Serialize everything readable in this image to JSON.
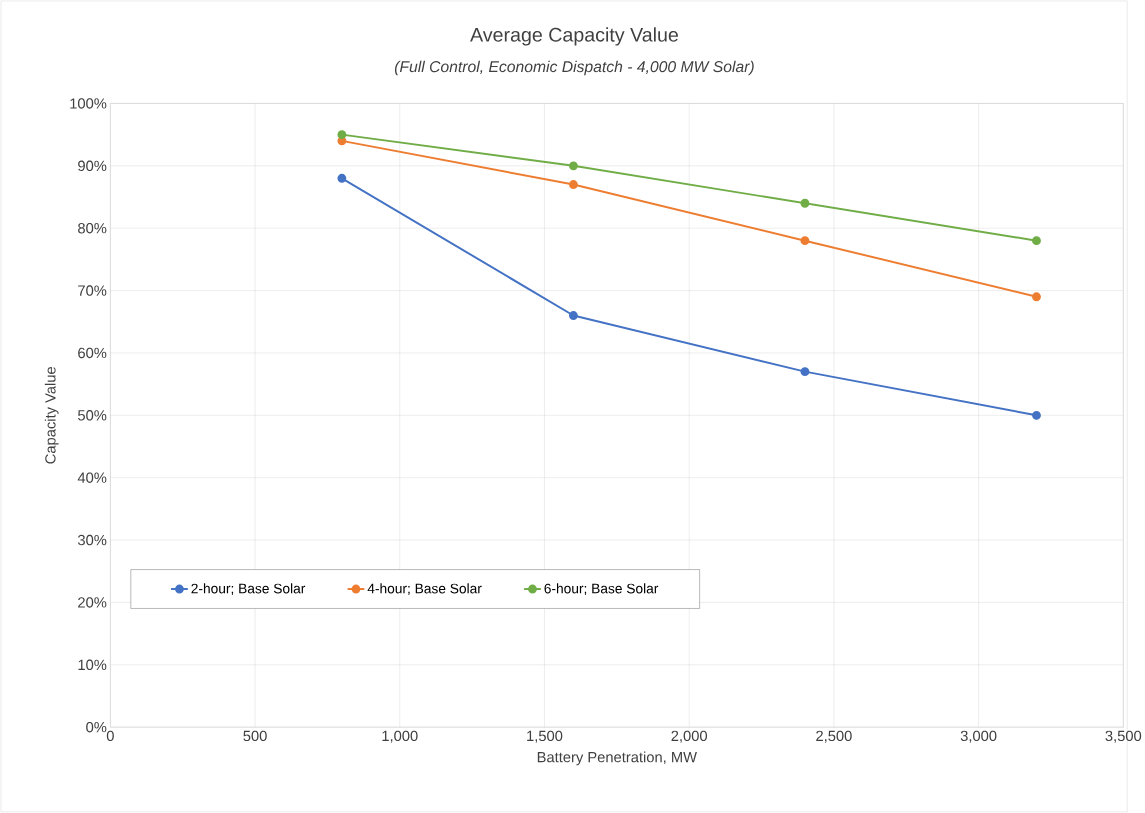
{
  "chart_data": {
    "type": "line",
    "title": "Average Capacity Value",
    "subtitle": "(Full Control, Economic Dispatch - 4,000 MW Solar)",
    "xlabel": "Battery Penetration, MW",
    "ylabel": "Capacity Value",
    "x": [
      800,
      1600,
      2400,
      3200
    ],
    "series": [
      {
        "name": "2-hour; Base Solar",
        "color": "#4472c4",
        "values": [
          88,
          66,
          57,
          50
        ]
      },
      {
        "name": "4-hour; Base Solar",
        "color": "#ed7d31",
        "values": [
          94,
          87,
          78,
          69
        ]
      },
      {
        "name": "6-hour; Base Solar",
        "color": "#70ad47",
        "values": [
          95,
          90,
          84,
          78
        ]
      }
    ],
    "xlim": [
      0,
      3500
    ],
    "xticks": [
      0,
      500,
      {
        "value": 1000,
        "label": "1,000"
      },
      {
        "value": 1500,
        "label": "1,500"
      },
      {
        "value": 2000,
        "label": "2,000"
      },
      {
        "value": 2500,
        "label": "2,500"
      },
      {
        "value": 3000,
        "label": "3,000"
      },
      {
        "value": 3500,
        "label": "3,500"
      }
    ],
    "ylim": [
      0,
      100
    ],
    "yticks": [
      {
        "value": 0,
        "label": "0%"
      },
      {
        "value": 10,
        "label": "10%"
      },
      {
        "value": 20,
        "label": "20%"
      },
      {
        "value": 30,
        "label": "30%"
      },
      {
        "value": 40,
        "label": "40%"
      },
      {
        "value": 50,
        "label": "50%"
      },
      {
        "value": 60,
        "label": "60%"
      },
      {
        "value": 70,
        "label": "70%"
      },
      {
        "value": 80,
        "label": "80%"
      },
      {
        "value": 90,
        "label": "90%"
      },
      {
        "value": 100,
        "label": "100%"
      }
    ],
    "grid": true,
    "legend": "bottom left",
    "marker": "circle",
    "line_style": "solid"
  }
}
